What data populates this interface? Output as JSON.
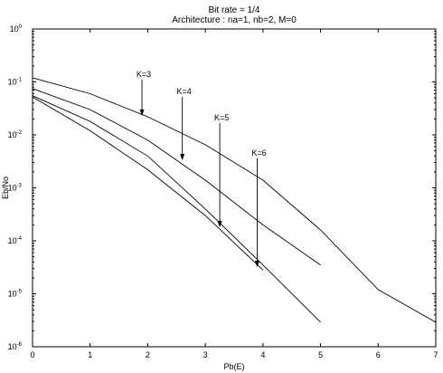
{
  "chart_data": {
    "type": "line",
    "title": "Bit rate = 1/4",
    "subtitle": "Architecture : na=1, nb=2, M=0",
    "xlabel": "Pb(E)",
    "ylabel": "Eb/No",
    "xlim": [
      0,
      7
    ],
    "ylim": [
      1e-06,
      1
    ],
    "yscale": "log",
    "x_ticks": [
      "0",
      "1",
      "2",
      "3",
      "4",
      "5",
      "6",
      "7"
    ],
    "y_ticks": [
      {
        "base": "10",
        "exp": "0"
      },
      {
        "base": "10",
        "exp": "-1"
      },
      {
        "base": "10",
        "exp": "-2"
      },
      {
        "base": "10",
        "exp": "-3"
      },
      {
        "base": "10",
        "exp": "-4"
      },
      {
        "base": "10",
        "exp": "-5"
      },
      {
        "base": "10",
        "exp": "-6"
      }
    ],
    "grid": false,
    "series": [
      {
        "name": "K=3",
        "x": [
          0,
          1,
          2,
          3,
          4,
          5,
          6,
          7
        ],
        "y": [
          0.12,
          0.06,
          0.022,
          0.0065,
          0.0014,
          0.00016,
          1.2e-05,
          2.9e-06
        ]
      },
      {
        "name": "K=4",
        "x": [
          0,
          1,
          2,
          3,
          4,
          5
        ],
        "y": [
          0.075,
          0.03,
          0.008,
          0.0014,
          0.0002,
          3.5e-05
        ]
      },
      {
        "name": "K=5",
        "x": [
          0,
          1,
          2,
          3,
          4,
          5
        ],
        "y": [
          0.055,
          0.018,
          0.004,
          0.0004,
          3.5e-05,
          2.9e-06
        ]
      },
      {
        "name": "K=6",
        "x": [
          0,
          1,
          2,
          3,
          4
        ],
        "y": [
          0.052,
          0.012,
          0.0022,
          0.0003,
          2.8e-05
        ]
      }
    ],
    "annotations": [
      {
        "text": "K=3",
        "tip": [
          1.9,
          0.023
        ]
      },
      {
        "text": "K=4",
        "tip": [
          2.6,
          0.0033
        ]
      },
      {
        "text": "K=5",
        "tip": [
          3.25,
          0.00018
        ]
      },
      {
        "text": "K=6",
        "tip": [
          3.9,
          3.2e-05
        ]
      }
    ]
  }
}
